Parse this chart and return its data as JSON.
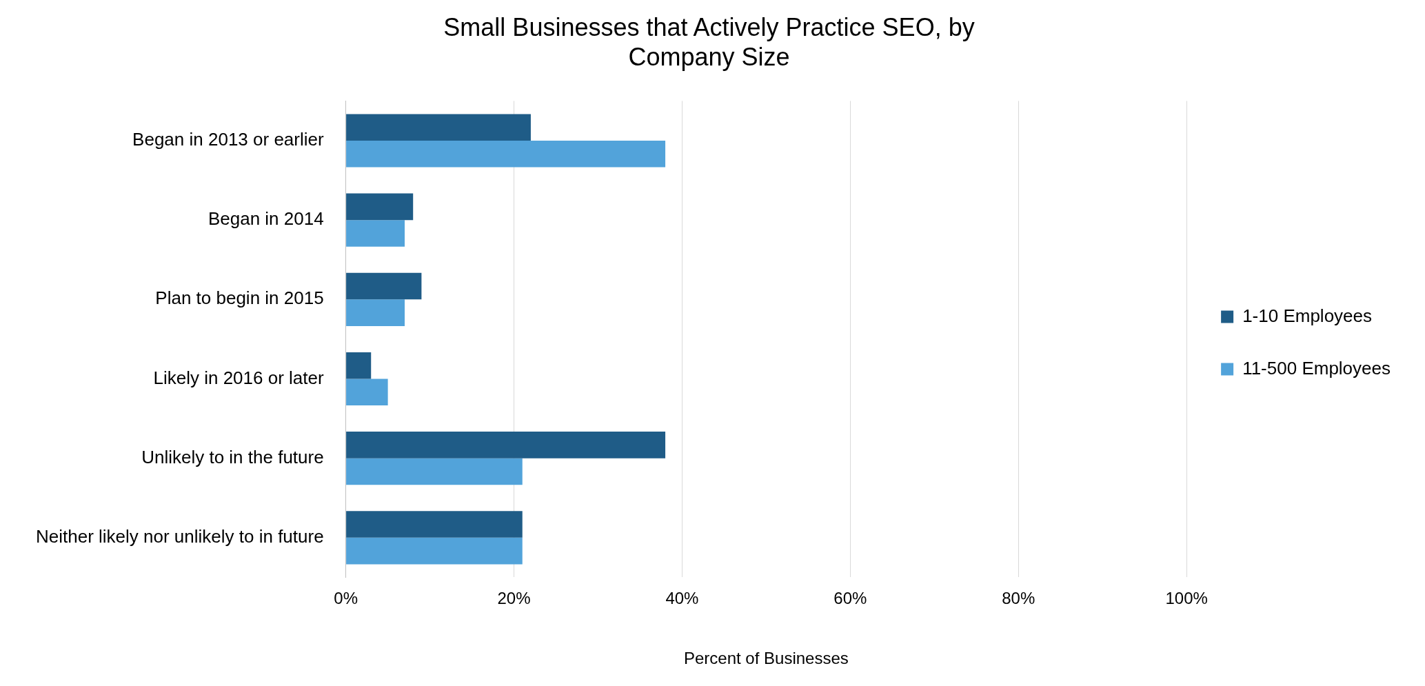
{
  "chart_data": {
    "type": "bar",
    "orientation": "horizontal",
    "title": "Small Businesses that Actively Practice SEO, by Company Size",
    "xlabel": "Percent of Businesses",
    "categories": [
      "Began in 2013 or earlier",
      "Began in 2014",
      "Plan to begin in 2015",
      "Likely in 2016 or later",
      "Unlikely to in the future",
      "Neither likely nor unlikely to in future"
    ],
    "series": [
      {
        "name": "1-10 Employees",
        "color": "#1f5c87",
        "values": [
          22,
          8,
          9,
          3,
          38,
          21
        ]
      },
      {
        "name": "11-500 Employees",
        "color": "#52a3da",
        "values": [
          38,
          7,
          7,
          5,
          21,
          21
        ]
      }
    ],
    "xlim": [
      0,
      100
    ],
    "xticks": [
      {
        "value": 0,
        "label": "0%"
      },
      {
        "value": 20,
        "label": "20%"
      },
      {
        "value": 40,
        "label": "40%"
      },
      {
        "value": 60,
        "label": "60%"
      },
      {
        "value": 80,
        "label": "80%"
      },
      {
        "value": 100,
        "label": "100%"
      }
    ],
    "grid": "x",
    "legend": "right"
  }
}
